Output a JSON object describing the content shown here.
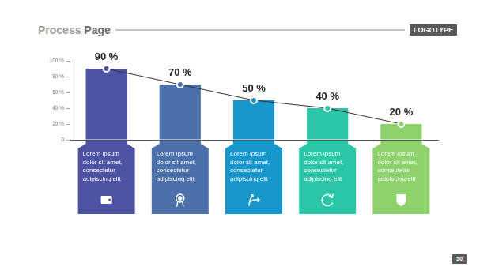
{
  "header": {
    "title": "Process Page",
    "logo": "LOGOTYPE"
  },
  "page_number": 50,
  "chart_data": {
    "type": "bar",
    "categories": [
      "Lorem ipsum dolor sit amet, consectetur adipiscing elit",
      "Lorem ipsum dolor sit amet, consectetur adipiscing elit",
      "Lorem ipsum dolor sit amet, consectetur adipiscing elit",
      "Lorem ipsum dolor sit amet, consectetur adipiscing elit",
      "Lorem ipsum dolor sit amet, consectetur adipiscing elit"
    ],
    "values": [
      90,
      70,
      50,
      40,
      20
    ],
    "value_labels": [
      "90 %",
      "70 %",
      "50 %",
      "40 %",
      "20 %"
    ],
    "colors": [
      "#4e52a3",
      "#4b70aa",
      "#1796cb",
      "#2bc6a8",
      "#8dd26c"
    ],
    "ylim": [
      0,
      100
    ],
    "yticks": [
      0,
      {
        "value": 20,
        "label": "20 %"
      },
      {
        "value": 40,
        "label": "40 %"
      },
      {
        "value": 60,
        "label": "60 %"
      },
      {
        "value": 80,
        "label": "80 %"
      },
      {
        "value": 100,
        "label": "100 %"
      }
    ],
    "grid": false,
    "data_labels": true,
    "marker": "circle",
    "line_style": "solid"
  }
}
